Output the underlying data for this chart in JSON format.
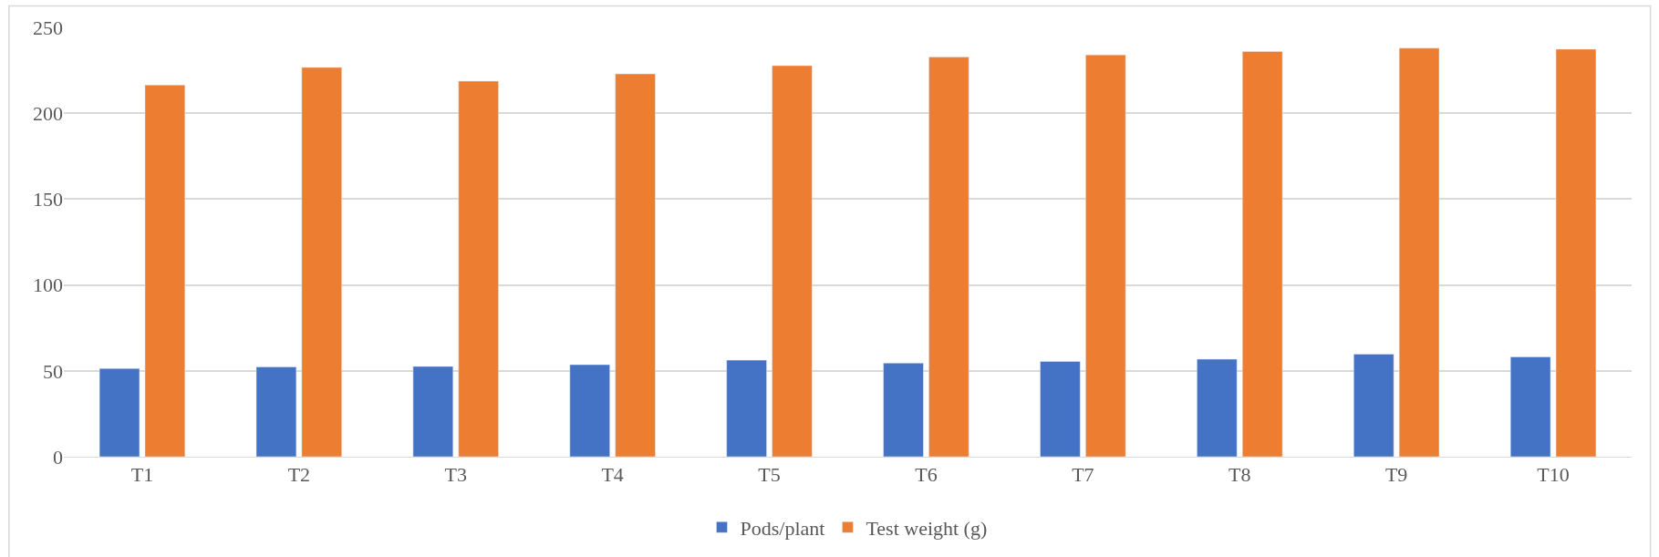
{
  "chart_data": {
    "type": "bar",
    "categories": [
      "T1",
      "T2",
      "T3",
      "T4",
      "T5",
      "T6",
      "T7",
      "T8",
      "T9",
      "T10"
    ],
    "series": [
      {
        "name": "Pods/plant",
        "color": "#4472c4",
        "values": [
          51.4,
          52.3,
          52.6,
          53.6,
          56.2,
          54.5,
          55.5,
          56.8,
          59.7,
          58.1
        ]
      },
      {
        "name": "Test weight (g)",
        "color": "#ed7d31",
        "values": [
          216.4,
          226.7,
          218.7,
          222.9,
          227.7,
          232.7,
          234.0,
          236.0,
          237.9,
          237.3
        ]
      }
    ],
    "ylim": [
      0,
      250
    ],
    "yticks": [
      0,
      50,
      100,
      150,
      200,
      250
    ],
    "grid": "y",
    "legend": "bottom"
  }
}
